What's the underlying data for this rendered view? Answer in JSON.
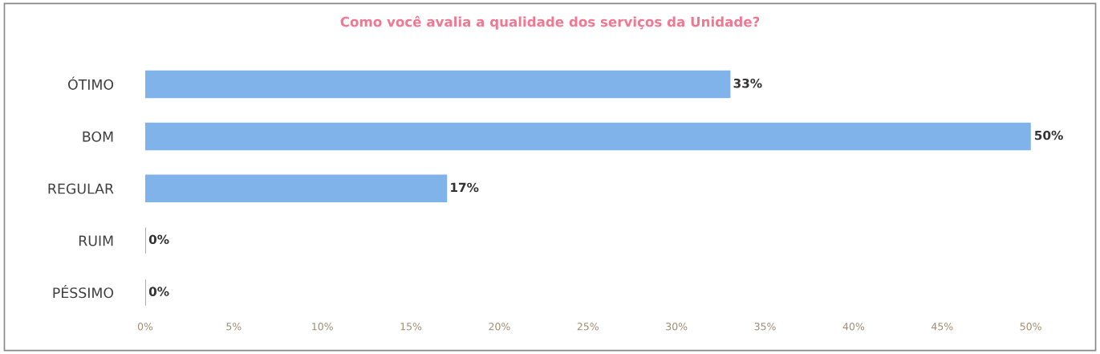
{
  "chart_data": {
    "type": "bar",
    "orientation": "horizontal",
    "title": "Como você avalia a qualidade dos serviços da Unidade?",
    "categories": [
      "ÓTIMO",
      "BOM",
      "REGULAR",
      "RUIM",
      "PÉSSIMO"
    ],
    "values": [
      33,
      50,
      17,
      0,
      0
    ],
    "value_labels": [
      "33%",
      "50%",
      "17%",
      "0%",
      "0%"
    ],
    "color": "#7fb3ea",
    "xlim": [
      0,
      50
    ],
    "xticks": [
      {
        "value": 0,
        "label": "0%"
      },
      {
        "value": 5,
        "label": "5%"
      },
      {
        "value": 10,
        "label": "10%"
      },
      {
        "value": 15,
        "label": "15%"
      },
      {
        "value": 20,
        "label": "20%"
      },
      {
        "value": 25,
        "label": "25%"
      },
      {
        "value": 30,
        "label": "30%"
      },
      {
        "value": 35,
        "label": "35%"
      },
      {
        "value": 40,
        "label": "40%"
      },
      {
        "value": 45,
        "label": "45%"
      },
      {
        "value": 50,
        "label": "50%"
      }
    ],
    "grid": false,
    "legend": false
  }
}
